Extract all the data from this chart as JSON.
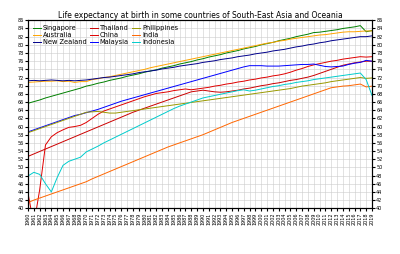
{
  "title": "Life expectancy at birth in some countries of South-East Asia and Oceania",
  "xlim": [
    1960,
    2019
  ],
  "ylim": [
    40,
    86
  ],
  "yticks": [
    40,
    42,
    44,
    46,
    48,
    50,
    52,
    54,
    56,
    58,
    60,
    62,
    64,
    66,
    68,
    70,
    72,
    74,
    76,
    78,
    80,
    82,
    84,
    86
  ],
  "countries": [
    {
      "name": "Singapore",
      "color": "#008000",
      "data": {
        "1960": 65.7,
        "1961": 66.1,
        "1962": 66.5,
        "1963": 67.0,
        "1964": 67.4,
        "1965": 67.8,
        "1966": 68.2,
        "1967": 68.6,
        "1968": 69.0,
        "1969": 69.4,
        "1970": 69.9,
        "1971": 70.2,
        "1972": 70.6,
        "1973": 70.9,
        "1974": 71.3,
        "1975": 71.6,
        "1976": 71.9,
        "1977": 72.3,
        "1978": 72.6,
        "1979": 72.9,
        "1980": 73.3,
        "1981": 73.6,
        "1982": 73.9,
        "1983": 74.3,
        "1984": 74.6,
        "1985": 74.9,
        "1986": 75.3,
        "1987": 75.6,
        "1988": 75.9,
        "1989": 76.3,
        "1990": 76.6,
        "1991": 77.0,
        "1992": 77.3,
        "1993": 77.6,
        "1994": 78.0,
        "1995": 78.3,
        "1996": 78.6,
        "1997": 79.0,
        "1998": 79.3,
        "1999": 79.6,
        "2000": 80.0,
        "2001": 80.3,
        "2002": 80.6,
        "2003": 81.0,
        "2004": 81.3,
        "2005": 81.6,
        "2006": 82.0,
        "2007": 82.3,
        "2008": 82.6,
        "2009": 83.0,
        "2010": 83.1,
        "2011": 83.3,
        "2012": 83.5,
        "2013": 83.7,
        "2014": 84.0,
        "2015": 84.2,
        "2016": 84.4,
        "2017": 84.7,
        "2018": 83.2,
        "2019": 83.5
      }
    },
    {
      "name": "Australia",
      "color": "#ffa500",
      "data": {
        "1960": 70.8,
        "1961": 70.9,
        "1962": 71.0,
        "1963": 71.1,
        "1964": 71.1,
        "1965": 71.2,
        "1966": 71.0,
        "1967": 71.1,
        "1968": 70.8,
        "1969": 71.0,
        "1970": 71.0,
        "1971": 71.5,
        "1972": 71.7,
        "1973": 72.0,
        "1974": 72.2,
        "1975": 72.5,
        "1976": 72.8,
        "1977": 73.1,
        "1978": 73.4,
        "1979": 73.7,
        "1980": 74.0,
        "1981": 74.4,
        "1982": 74.7,
        "1983": 75.0,
        "1984": 75.3,
        "1985": 75.6,
        "1986": 75.9,
        "1987": 76.2,
        "1988": 76.5,
        "1989": 76.8,
        "1990": 77.1,
        "1991": 77.4,
        "1992": 77.7,
        "1993": 78.0,
        "1994": 78.3,
        "1995": 78.6,
        "1996": 78.9,
        "1997": 79.2,
        "1998": 79.5,
        "1999": 79.8,
        "2000": 80.1,
        "2001": 80.4,
        "2002": 80.6,
        "2003": 80.9,
        "2004": 81.1,
        "2005": 81.4,
        "2006": 81.6,
        "2007": 81.8,
        "2008": 82.0,
        "2009": 82.2,
        "2010": 82.4,
        "2011": 82.5,
        "2012": 82.7,
        "2013": 82.9,
        "2014": 83.1,
        "2015": 83.2,
        "2016": 83.2,
        "2017": 83.3,
        "2018": 83.4,
        "2019": 83.4
      }
    },
    {
      "name": "New Zealand",
      "color": "#00008b",
      "data": {
        "1960": 71.2,
        "1961": 71.3,
        "1962": 71.2,
        "1963": 71.3,
        "1964": 71.4,
        "1965": 71.3,
        "1966": 71.2,
        "1967": 71.3,
        "1968": 71.2,
        "1969": 71.3,
        "1970": 71.4,
        "1971": 71.6,
        "1972": 71.8,
        "1973": 72.0,
        "1974": 72.1,
        "1975": 72.3,
        "1976": 72.5,
        "1977": 72.7,
        "1978": 72.9,
        "1979": 73.2,
        "1980": 73.4,
        "1981": 73.6,
        "1982": 73.8,
        "1983": 74.1,
        "1984": 74.3,
        "1985": 74.5,
        "1986": 74.8,
        "1987": 75.0,
        "1988": 75.2,
        "1989": 75.4,
        "1990": 75.7,
        "1991": 75.9,
        "1992": 76.1,
        "1993": 76.4,
        "1994": 76.6,
        "1995": 76.8,
        "1996": 77.1,
        "1997": 77.3,
        "1998": 77.5,
        "1999": 77.8,
        "2000": 78.0,
        "2001": 78.2,
        "2002": 78.5,
        "2003": 78.7,
        "2004": 78.9,
        "2005": 79.2,
        "2006": 79.5,
        "2007": 79.7,
        "2008": 80.0,
        "2009": 80.2,
        "2010": 80.5,
        "2011": 80.7,
        "2012": 81.0,
        "2013": 81.2,
        "2014": 81.4,
        "2015": 81.6,
        "2016": 81.8,
        "2017": 82.0,
        "2018": 82.0,
        "2019": 82.2
      }
    },
    {
      "name": "Thailand",
      "color": "#cc0000",
      "data": {
        "1960": 52.7,
        "1961": 53.3,
        "1962": 53.9,
        "1963": 54.5,
        "1964": 55.1,
        "1965": 55.7,
        "1966": 56.3,
        "1967": 56.9,
        "1968": 57.5,
        "1969": 58.1,
        "1970": 58.7,
        "1971": 59.3,
        "1972": 59.9,
        "1973": 60.5,
        "1974": 61.1,
        "1975": 61.7,
        "1976": 62.3,
        "1977": 62.9,
        "1978": 63.5,
        "1979": 64.0,
        "1980": 64.5,
        "1981": 65.0,
        "1982": 65.5,
        "1983": 66.0,
        "1984": 66.5,
        "1985": 67.0,
        "1986": 67.5,
        "1987": 68.0,
        "1988": 68.5,
        "1989": 68.7,
        "1990": 68.9,
        "1991": 68.7,
        "1992": 68.5,
        "1993": 68.4,
        "1994": 68.5,
        "1995": 68.7,
        "1996": 68.9,
        "1997": 69.2,
        "1998": 69.4,
        "1999": 69.7,
        "2000": 70.0,
        "2001": 70.2,
        "2002": 70.5,
        "2003": 70.7,
        "2004": 71.0,
        "2005": 71.3,
        "2006": 71.5,
        "2007": 71.8,
        "2008": 72.1,
        "2009": 72.5,
        "2010": 73.0,
        "2011": 73.5,
        "2012": 74.0,
        "2013": 74.5,
        "2014": 75.0,
        "2015": 75.3,
        "2016": 75.6,
        "2017": 75.8,
        "2018": 76.0,
        "2019": 76.0
      }
    },
    {
      "name": "China",
      "color": "#e00000",
      "data": {
        "1960": 43.7,
        "1961": 36.0,
        "1962": 44.5,
        "1963": 55.5,
        "1964": 57.5,
        "1965": 58.5,
        "1966": 59.2,
        "1967": 59.8,
        "1968": 60.0,
        "1969": 60.3,
        "1970": 61.0,
        "1971": 62.0,
        "1972": 63.0,
        "1973": 63.8,
        "1974": 64.3,
        "1975": 64.8,
        "1976": 65.3,
        "1977": 65.8,
        "1978": 66.3,
        "1979": 66.8,
        "1980": 67.3,
        "1981": 67.7,
        "1982": 68.1,
        "1983": 68.3,
        "1984": 68.5,
        "1985": 68.8,
        "1986": 69.0,
        "1987": 69.2,
        "1988": 69.0,
        "1989": 69.2,
        "1990": 69.4,
        "1991": 69.6,
        "1992": 69.9,
        "1993": 70.1,
        "1994": 70.4,
        "1995": 70.6,
        "1996": 70.9,
        "1997": 71.1,
        "1998": 71.4,
        "1999": 71.6,
        "2000": 71.9,
        "2001": 72.1,
        "2002": 72.4,
        "2003": 72.6,
        "2004": 72.9,
        "2005": 73.3,
        "2006": 73.8,
        "2007": 74.2,
        "2008": 74.7,
        "2009": 75.1,
        "2010": 75.4,
        "2011": 75.7,
        "2012": 76.0,
        "2013": 76.2,
        "2014": 76.5,
        "2015": 76.7,
        "2016": 76.9,
        "2017": 77.1,
        "2018": 77.0,
        "2019": 77.1
      }
    },
    {
      "name": "Malaysia",
      "color": "#0000ff",
      "data": {
        "1960": 58.7,
        "1961": 59.2,
        "1962": 59.7,
        "1963": 60.2,
        "1964": 60.7,
        "1965": 61.2,
        "1966": 61.7,
        "1967": 62.2,
        "1968": 62.7,
        "1969": 63.0,
        "1970": 63.4,
        "1971": 63.8,
        "1972": 64.2,
        "1973": 64.7,
        "1974": 65.2,
        "1975": 65.7,
        "1976": 66.2,
        "1977": 66.6,
        "1978": 67.0,
        "1979": 67.4,
        "1980": 67.8,
        "1981": 68.2,
        "1982": 68.6,
        "1983": 69.0,
        "1984": 69.4,
        "1985": 69.8,
        "1986": 70.2,
        "1987": 70.6,
        "1988": 71.0,
        "1989": 71.4,
        "1990": 71.8,
        "1991": 72.2,
        "1992": 72.6,
        "1993": 73.0,
        "1994": 73.4,
        "1995": 73.8,
        "1996": 74.2,
        "1997": 74.6,
        "1998": 74.9,
        "1999": 74.9,
        "2000": 74.9,
        "2001": 74.8,
        "2002": 74.8,
        "2003": 74.8,
        "2004": 74.9,
        "2005": 75.0,
        "2006": 75.1,
        "2007": 75.2,
        "2008": 75.2,
        "2009": 75.3,
        "2010": 75.0,
        "2011": 74.7,
        "2012": 74.6,
        "2013": 74.7,
        "2014": 74.8,
        "2015": 75.2,
        "2016": 75.5,
        "2017": 75.7,
        "2018": 76.2,
        "2019": 76.0
      }
    },
    {
      "name": "Philippines",
      "color": "#999900",
      "data": {
        "1960": 58.5,
        "1961": 59.0,
        "1962": 59.5,
        "1963": 60.0,
        "1964": 60.5,
        "1965": 61.0,
        "1966": 61.5,
        "1967": 62.0,
        "1968": 62.5,
        "1969": 63.0,
        "1970": 63.5,
        "1971": 63.6,
        "1972": 63.7,
        "1973": 63.5,
        "1974": 63.3,
        "1975": 63.3,
        "1976": 63.5,
        "1977": 63.7,
        "1978": 63.9,
        "1979": 64.1,
        "1980": 64.3,
        "1981": 64.5,
        "1982": 64.7,
        "1983": 64.9,
        "1984": 65.1,
        "1985": 65.3,
        "1986": 65.5,
        "1987": 65.7,
        "1988": 65.9,
        "1989": 66.1,
        "1990": 66.3,
        "1991": 66.5,
        "1992": 66.7,
        "1993": 66.9,
        "1994": 67.1,
        "1995": 67.3,
        "1996": 67.5,
        "1997": 67.7,
        "1998": 67.9,
        "1999": 68.1,
        "2000": 68.3,
        "2001": 68.5,
        "2002": 68.7,
        "2003": 68.9,
        "2004": 69.1,
        "2005": 69.3,
        "2006": 69.6,
        "2007": 69.9,
        "2008": 70.1,
        "2009": 70.3,
        "2010": 70.5,
        "2011": 70.7,
        "2012": 71.0,
        "2013": 71.2,
        "2014": 71.4,
        "2015": 71.6,
        "2016": 71.8,
        "2017": 72.0,
        "2018": 71.8,
        "2019": 71.9
      }
    },
    {
      "name": "India",
      "color": "#ff6600",
      "data": {
        "1960": 41.4,
        "1961": 42.0,
        "1962": 42.5,
        "1963": 43.0,
        "1964": 43.5,
        "1965": 44.0,
        "1966": 44.5,
        "1967": 45.0,
        "1968": 45.5,
        "1969": 46.0,
        "1970": 46.5,
        "1971": 47.2,
        "1972": 47.8,
        "1973": 48.4,
        "1974": 49.0,
        "1975": 49.6,
        "1976": 50.2,
        "1977": 50.8,
        "1978": 51.4,
        "1979": 52.0,
        "1980": 52.6,
        "1981": 53.2,
        "1982": 53.8,
        "1983": 54.4,
        "1984": 55.0,
        "1985": 55.5,
        "1986": 56.0,
        "1987": 56.5,
        "1988": 57.0,
        "1989": 57.5,
        "1990": 58.0,
        "1991": 58.6,
        "1992": 59.2,
        "1993": 59.8,
        "1994": 60.4,
        "1995": 61.0,
        "1996": 61.5,
        "1997": 62.0,
        "1998": 62.5,
        "1999": 63.0,
        "2000": 63.5,
        "2001": 64.0,
        "2002": 64.5,
        "2003": 65.0,
        "2004": 65.5,
        "2005": 66.0,
        "2006": 66.5,
        "2007": 67.0,
        "2008": 67.5,
        "2009": 68.0,
        "2010": 68.5,
        "2011": 69.0,
        "2012": 69.5,
        "2013": 69.7,
        "2014": 69.9,
        "2015": 70.0,
        "2016": 70.2,
        "2017": 70.4,
        "2018": 69.7,
        "2019": 69.9
      }
    },
    {
      "name": "Indonesia",
      "color": "#00cccc",
      "data": {
        "1960": 47.9,
        "1961": 48.8,
        "1962": 48.3,
        "1963": 46.0,
        "1964": 44.0,
        "1965": 47.5,
        "1966": 50.5,
        "1967": 51.5,
        "1968": 52.0,
        "1969": 52.5,
        "1970": 53.8,
        "1971": 54.5,
        "1972": 55.2,
        "1973": 56.0,
        "1974": 56.7,
        "1975": 57.4,
        "1976": 58.1,
        "1977": 58.8,
        "1978": 59.5,
        "1979": 60.2,
        "1980": 60.9,
        "1981": 61.6,
        "1982": 62.3,
        "1983": 63.0,
        "1984": 63.7,
        "1985": 64.4,
        "1986": 65.0,
        "1987": 65.5,
        "1988": 66.0,
        "1989": 66.5,
        "1990": 67.0,
        "1991": 67.3,
        "1992": 67.6,
        "1993": 67.9,
        "1994": 68.2,
        "1995": 68.5,
        "1996": 68.8,
        "1997": 69.0,
        "1998": 68.7,
        "1999": 68.9,
        "2000": 69.2,
        "2001": 69.5,
        "2002": 69.8,
        "2003": 70.0,
        "2004": 70.3,
        "2005": 70.5,
        "2006": 70.8,
        "2007": 71.0,
        "2008": 71.2,
        "2009": 71.5,
        "2010": 71.7,
        "2011": 71.9,
        "2012": 72.1,
        "2013": 72.3,
        "2014": 72.5,
        "2015": 72.7,
        "2016": 72.9,
        "2017": 73.1,
        "2018": 71.5,
        "2019": 67.6
      }
    }
  ],
  "background_color": "#ffffff",
  "grid_color": "#cccccc",
  "title_fontsize": 5.5,
  "legend_fontsize": 4.8,
  "tick_fontsize": 3.5,
  "linewidth": 0.7
}
